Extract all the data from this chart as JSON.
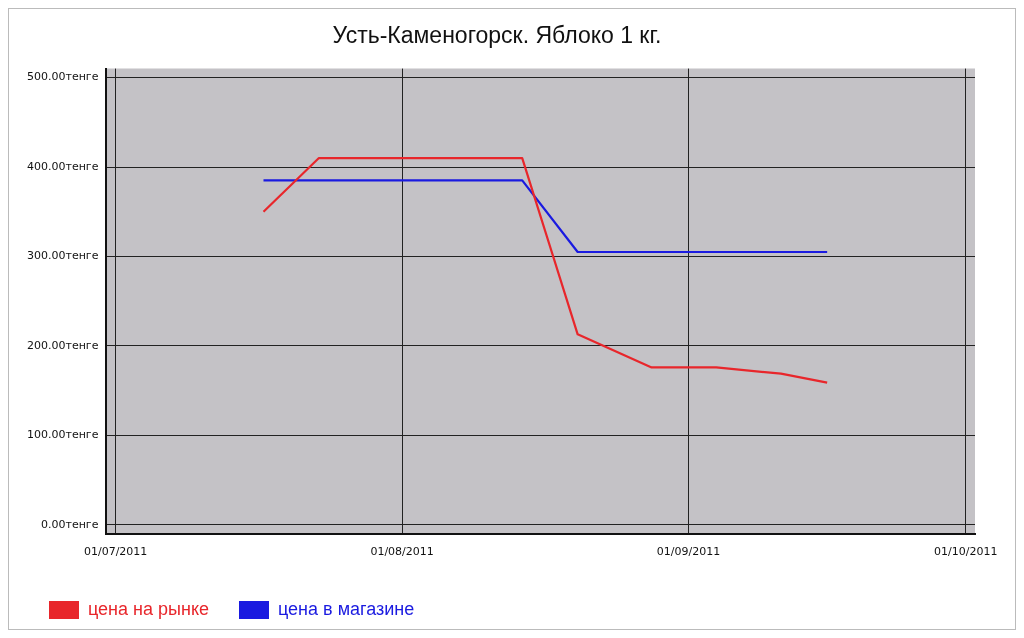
{
  "chart_data": {
    "type": "line",
    "title": "Усть-Каменогорск. Яблоко 1 кг.",
    "x": [
      "2011-07-17",
      "2011-07-23",
      "2011-07-31",
      "2011-08-07",
      "2011-08-14",
      "2011-08-20",
      "2011-08-28",
      "2011-09-04",
      "2011-09-11",
      "2011-09-16"
    ],
    "series": [
      {
        "name": "цена на рынке",
        "color": "#e8262b",
        "values": [
          350,
          410,
          410,
          410,
          410,
          213,
          176,
          176,
          169,
          159
        ]
      },
      {
        "name": "цена в магазине",
        "color": "#1a1ae0",
        "values": [
          385,
          385,
          385,
          385,
          385,
          305,
          305,
          305,
          305,
          305
        ]
      }
    ],
    "xlim": [
      "2011-06-30",
      "2011-10-02"
    ],
    "xticks": [
      {
        "value": "2011-07-01",
        "label": "01/07/2011"
      },
      {
        "value": "2011-08-01",
        "label": "01/08/2011"
      },
      {
        "value": "2011-09-01",
        "label": "01/09/2011"
      },
      {
        "value": "2011-10-01",
        "label": "01/10/2011"
      }
    ],
    "ylim": [
      -10,
      510
    ],
    "yticks": [
      {
        "value": 0,
        "label": "0.00тенге"
      },
      {
        "value": 100,
        "label": "100.00тенге"
      },
      {
        "value": 200,
        "label": "200.00тенге"
      },
      {
        "value": 300,
        "label": "300.00тенге"
      },
      {
        "value": 400,
        "label": "400.00тенге"
      },
      {
        "value": 500,
        "label": "500.00тенге"
      }
    ],
    "grid": true,
    "legend": "bottom left",
    "marker": "none",
    "line_style": "solid"
  }
}
